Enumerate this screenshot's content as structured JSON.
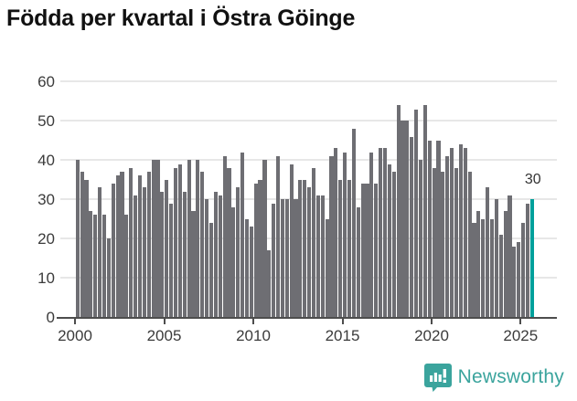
{
  "title": "Födda per kvartal i Östra Göinge",
  "annotation_label": "30",
  "footer": {
    "brand": "Newsworthy"
  },
  "colors": {
    "bar": "#6E6E73",
    "highlight": "#00A09B",
    "grid": "#E7E7E7",
    "axis": "#4D4D4D",
    "brand": "#3BA49D",
    "title_text": "#111111",
    "tick_text": "#3B3B3B"
  },
  "chart_data": {
    "type": "bar",
    "title": "Födda per kvartal i Östra Göinge",
    "xlabel": "",
    "ylabel": "",
    "x_start": "2000-Q1",
    "x_end": "2025-Q3",
    "x_tick_labels": [
      "2000",
      "2005",
      "2010",
      "2015",
      "2020",
      "2025"
    ],
    "y_ticks": [
      0,
      10,
      20,
      30,
      40,
      50,
      60
    ],
    "ylim": [
      0,
      60
    ],
    "grid": true,
    "legend": "none",
    "series": [
      {
        "name": "Födda per kvartal",
        "values": [
          40,
          37,
          35,
          27,
          26,
          33,
          26,
          20,
          34,
          36,
          37,
          26,
          38,
          31,
          36,
          33,
          37,
          40,
          40,
          32,
          35,
          29,
          38,
          39,
          32,
          40,
          27,
          40,
          37,
          30,
          24,
          32,
          31,
          41,
          38,
          28,
          33,
          42,
          25,
          23,
          34,
          35,
          40,
          17,
          29,
          41,
          30,
          30,
          39,
          30,
          35,
          35,
          33,
          38,
          31,
          31,
          25,
          41,
          43,
          35,
          42,
          35,
          48,
          28,
          34,
          34,
          42,
          34,
          43,
          43,
          39,
          37,
          54,
          50,
          50,
          46,
          53,
          40,
          54,
          45,
          38,
          45,
          37,
          41,
          43,
          38,
          44,
          43,
          37,
          24,
          27,
          25,
          33,
          25,
          30,
          21,
          27,
          31,
          18,
          19,
          24,
          29,
          30
        ]
      }
    ],
    "highlight": {
      "index": 102,
      "value": 30,
      "label": "30"
    }
  }
}
